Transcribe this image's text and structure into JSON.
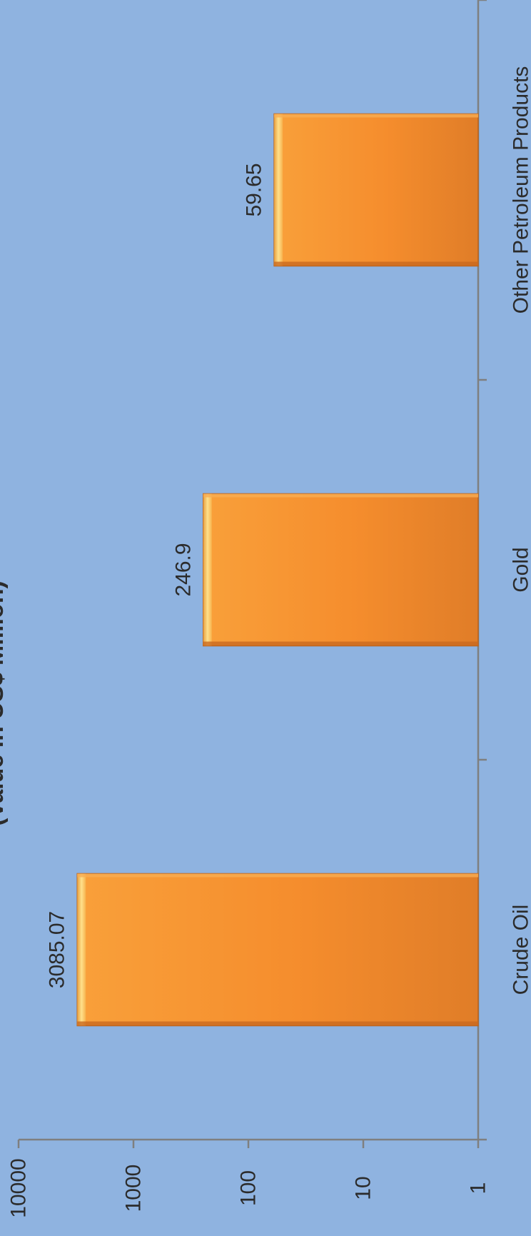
{
  "chart_data": {
    "type": "bar",
    "title": "(Value in US$ Million)",
    "categories": [
      "Crude Oil",
      "Gold",
      "Other Petroleum Products"
    ],
    "values": [
      3085.07,
      246.9,
      59.65
    ],
    "value_labels": [
      "3085.07",
      "246.9",
      "59.65"
    ],
    "scale": "log",
    "ylim": [
      1,
      10000
    ],
    "ticks": [
      1,
      10,
      100,
      1000,
      10000
    ],
    "tick_labels": [
      "1",
      "10",
      "100",
      "1000",
      "10000"
    ],
    "orientation": "rotated 90° clockwise",
    "grid": false,
    "legend": "none"
  },
  "colors": {
    "background": "#8fb3e0",
    "bar_light": "#fbbf55",
    "bar_mid": "#f5922f",
    "bar_dark": "#e07d28",
    "axis": "#7f7f7f"
  }
}
